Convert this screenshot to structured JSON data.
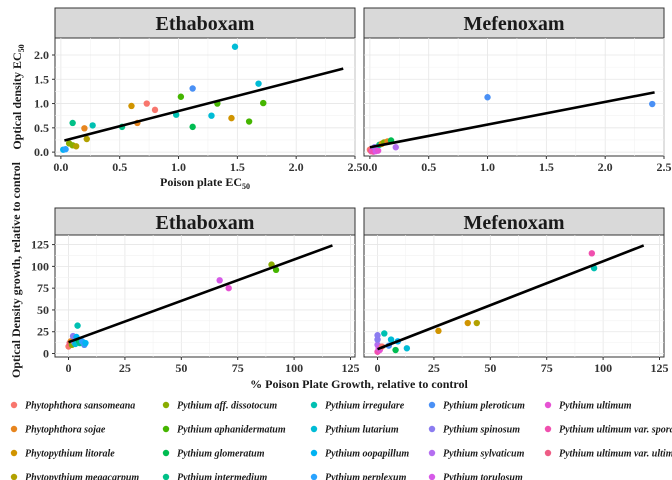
{
  "chart_data": [
    {
      "type": "scatter",
      "panel": "Ethaboxam",
      "strip_label": "Ethaboxam",
      "ylabel": "Optical density EC",
      "ylabel_sub": "50",
      "xlabel": "Poison plate EC",
      "xlabel_sub": "50",
      "xlim": [
        -0.05,
        2.5
      ],
      "ylim": [
        -0.08,
        2.35
      ],
      "x_ticks": [
        0.0,
        0.5,
        1.0,
        1.5,
        2.0,
        2.5
      ],
      "x_tick_labels": [
        "0.0",
        "0.5",
        "1.0",
        "1.5",
        "2.0",
        "2.5"
      ],
      "y_ticks": [
        0.0,
        0.5,
        1.0,
        1.5,
        2.0
      ],
      "y_tick_labels": [
        "0.0",
        "0.5",
        "1.0",
        "1.5",
        "2.0"
      ],
      "fit_line": {
        "x": [
          0.03,
          2.4
        ],
        "y": [
          0.24,
          1.72
        ]
      },
      "points": [
        {
          "x": 0.02,
          "y": 0.05,
          "species": "Pythium oopapillum"
        },
        {
          "x": 0.04,
          "y": 0.06,
          "species": "Pythium perplexum"
        },
        {
          "x": 0.07,
          "y": 0.18,
          "species": "Pythium aff. dissotocum"
        },
        {
          "x": 0.1,
          "y": 0.6,
          "species": "Pythium intermedium"
        },
        {
          "x": 0.1,
          "y": 0.14,
          "species": "Pythium aff. dissotocum"
        },
        {
          "x": 0.13,
          "y": 0.12,
          "species": "Phytopythium megacarpum"
        },
        {
          "x": 0.2,
          "y": 0.49,
          "species": "Phytophthora sojae"
        },
        {
          "x": 0.22,
          "y": 0.27,
          "species": "Phytopythium megacarpum"
        },
        {
          "x": 0.27,
          "y": 0.55,
          "species": "Pythium irregulare"
        },
        {
          "x": 0.52,
          "y": 0.52,
          "species": "Pythium intermedium"
        },
        {
          "x": 0.6,
          "y": 0.95,
          "species": "Phytopythium litorale"
        },
        {
          "x": 0.65,
          "y": 0.6,
          "species": "Phytophthora sojae"
        },
        {
          "x": 0.73,
          "y": 1.0,
          "species": "Phytophthora sansomeana"
        },
        {
          "x": 0.8,
          "y": 0.87,
          "species": "Phytophthora sansomeana"
        },
        {
          "x": 0.98,
          "y": 0.77,
          "species": "Pythium irregulare"
        },
        {
          "x": 1.02,
          "y": 1.14,
          "species": "Pythium aphanidermatum"
        },
        {
          "x": 1.12,
          "y": 1.31,
          "species": "Pythium pleroticum"
        },
        {
          "x": 1.12,
          "y": 0.52,
          "species": "Pythium glomeratum"
        },
        {
          "x": 1.28,
          "y": 0.75,
          "species": "Pythium lutarium"
        },
        {
          "x": 1.33,
          "y": 1.0,
          "species": "Pythium aphanidermatum"
        },
        {
          "x": 1.45,
          "y": 0.7,
          "species": "Phytopythium litorale"
        },
        {
          "x": 1.48,
          "y": 2.17,
          "species": "Pythium lutarium"
        },
        {
          "x": 1.6,
          "y": 0.63,
          "species": "Pythium aphanidermatum"
        },
        {
          "x": 1.68,
          "y": 1.41,
          "species": "Pythium lutarium"
        },
        {
          "x": 1.72,
          "y": 1.01,
          "species": "Pythium aphanidermatum"
        }
      ]
    },
    {
      "type": "scatter",
      "panel": "Mefenoxam",
      "strip_label": "Mefenoxam",
      "xlim": [
        -0.05,
        2.5
      ],
      "ylim": [
        -0.08,
        2.35
      ],
      "x_ticks": [
        0.0,
        0.5,
        1.0,
        1.5,
        2.0,
        2.5
      ],
      "x_tick_labels": [
        "0.0",
        "0.5",
        "1.0",
        "1.5",
        "2.0",
        "2.5"
      ],
      "fit_line": {
        "x": [
          0.0,
          2.42
        ],
        "y": [
          0.1,
          1.23
        ]
      },
      "points": [
        {
          "x": 0.0,
          "y": 0.05,
          "species": "Phytophthora sansomeana"
        },
        {
          "x": 0.01,
          "y": 0.02,
          "species": "Pythium ultimum var. ultimum"
        },
        {
          "x": 0.02,
          "y": 0.03,
          "species": "Pythium ultimum"
        },
        {
          "x": 0.03,
          "y": 0.01,
          "species": "Pythium ultimum var. sporangiiferum"
        },
        {
          "x": 0.04,
          "y": 0.1,
          "species": "Pythium spinosum"
        },
        {
          "x": 0.05,
          "y": 0.02,
          "species": "Pythium torulosum"
        },
        {
          "x": 0.07,
          "y": 0.03,
          "species": "Pythium ultimum"
        },
        {
          "x": 0.08,
          "y": 0.15,
          "species": "Pythium intermedium"
        },
        {
          "x": 0.1,
          "y": 0.17,
          "species": "Phytopythium litorale"
        },
        {
          "x": 0.12,
          "y": 0.2,
          "species": "Pythium aff. dissotocum"
        },
        {
          "x": 0.15,
          "y": 0.22,
          "species": "Phytophthora sojae"
        },
        {
          "x": 0.18,
          "y": 0.24,
          "species": "Pythium glomeratum"
        },
        {
          "x": 0.22,
          "y": 0.1,
          "species": "Pythium sylvaticum"
        },
        {
          "x": 1.0,
          "y": 1.13,
          "species": "Pythium pleroticum"
        },
        {
          "x": 2.4,
          "y": 0.99,
          "species": "Pythium pleroticum"
        }
      ]
    },
    {
      "type": "scatter",
      "panel": "Ethaboxam",
      "strip_label": "Ethaboxam",
      "ylabel": "Optical Density growth, relative to control",
      "xlabel": "% Poison Plate Growth, relative to control",
      "xlim": [
        -6,
        127
      ],
      "ylim": [
        -4,
        136
      ],
      "x_ticks": [
        0,
        25,
        50,
        75,
        100,
        125
      ],
      "x_tick_labels": [
        "0",
        "25",
        "50",
        "75",
        "100",
        "125"
      ],
      "y_ticks": [
        0,
        25,
        50,
        75,
        100,
        125
      ],
      "y_tick_labels": [
        "0",
        "25",
        "50",
        "75",
        "100",
        "125"
      ],
      "fit_line": {
        "x": [
          0,
          117
        ],
        "y": [
          13,
          124
        ]
      },
      "points": [
        {
          "x": 0.0,
          "y": 8,
          "species": "Phytophthora sansomeana"
        },
        {
          "x": 0.5,
          "y": 12,
          "species": "Pythium ultimum var. ultimum"
        },
        {
          "x": 1.0,
          "y": 14,
          "species": "Phytophthora sojae"
        },
        {
          "x": 1.5,
          "y": 10,
          "species": "Pythium aff. dissotocum"
        },
        {
          "x": 2.0,
          "y": 20,
          "species": "Pythium spinosum"
        },
        {
          "x": 2.5,
          "y": 13,
          "species": "Pythium sylvaticum"
        },
        {
          "x": 3.0,
          "y": 11,
          "species": "Pythium lutarium"
        },
        {
          "x": 3.5,
          "y": 19,
          "species": "Pythium oopapillum"
        },
        {
          "x": 4.0,
          "y": 32,
          "species": "Pythium irregulare"
        },
        {
          "x": 4.5,
          "y": 15,
          "species": "Pythium glomeratum"
        },
        {
          "x": 5.0,
          "y": 12,
          "species": "Pythium intermedium"
        },
        {
          "x": 6.0,
          "y": 14,
          "species": "Pythium perplexum"
        },
        {
          "x": 7.0,
          "y": 10,
          "species": "Pythium pleroticum"
        },
        {
          "x": 7.5,
          "y": 12,
          "species": "Pythium oopapillum"
        },
        {
          "x": 67,
          "y": 84,
          "species": "Pythium torulosum"
        },
        {
          "x": 71,
          "y": 75,
          "species": "Pythium ultimum"
        },
        {
          "x": 90,
          "y": 102,
          "species": "Pythium aff. dissotocum"
        },
        {
          "x": 92,
          "y": 96,
          "species": "Pythium aphanidermatum"
        }
      ]
    },
    {
      "type": "scatter",
      "panel": "Mefenoxam",
      "strip_label": "Mefenoxam",
      "xlim": [
        -6,
        127
      ],
      "ylim": [
        -4,
        136
      ],
      "x_ticks": [
        0,
        25,
        50,
        75,
        100,
        125
      ],
      "x_tick_labels": [
        "0",
        "25",
        "50",
        "75",
        "100",
        "125"
      ],
      "fit_line": {
        "x": [
          0,
          118
        ],
        "y": [
          5,
          124
        ]
      },
      "points": [
        {
          "x": 0.0,
          "y": 2,
          "species": "Pythium ultimum var. sporangiiferum"
        },
        {
          "x": 0.0,
          "y": 10,
          "species": "Pythium sylvaticum"
        },
        {
          "x": 0.0,
          "y": 16,
          "species": "Pythium spinosum"
        },
        {
          "x": 0.0,
          "y": 21,
          "species": "Pythium spinosum"
        },
        {
          "x": 0.5,
          "y": 6,
          "species": "Pythium torulosum"
        },
        {
          "x": 1.0,
          "y": 4,
          "species": "Pythium ultimum"
        },
        {
          "x": 2.0,
          "y": 8,
          "species": "Phytophthora sansomeana"
        },
        {
          "x": 3.0,
          "y": 23,
          "species": "Pythium irregulare"
        },
        {
          "x": 5.0,
          "y": 9,
          "species": "Pythium pleroticum"
        },
        {
          "x": 6.0,
          "y": 16,
          "species": "Pythium lutarium"
        },
        {
          "x": 8.0,
          "y": 4,
          "species": "Pythium glomeratum"
        },
        {
          "x": 9.0,
          "y": 14,
          "species": "Pythium oopapillum"
        },
        {
          "x": 13.0,
          "y": 6,
          "species": "Pythium lutarium"
        },
        {
          "x": 27,
          "y": 26,
          "species": "Phytopythium litorale"
        },
        {
          "x": 40,
          "y": 35,
          "species": "Phytopythium litorale"
        },
        {
          "x": 44,
          "y": 35,
          "species": "Phytopythium megacarpum"
        },
        {
          "x": 95,
          "y": 115,
          "species": "Pythium ultimum var. sporangiiferum"
        },
        {
          "x": 96,
          "y": 98,
          "species": "Pythium irregulare"
        }
      ]
    }
  ],
  "legend": {
    "placement": "bottom",
    "items": [
      {
        "label": "Phytophthora sansomeana",
        "color": "#F8766D"
      },
      {
        "label": "Phytophthora sojae",
        "color": "#E7851E"
      },
      {
        "label": "Phytopythium litorale",
        "color": "#D09400"
      },
      {
        "label": "Phytopythium megacarpum",
        "color": "#B2A100"
      },
      {
        "label": "Pythium aff. dissotocum",
        "color": "#89AC00"
      },
      {
        "label": "Pythium aphanidermatum",
        "color": "#45B500"
      },
      {
        "label": "Pythium glomeratum",
        "color": "#00BC51"
      },
      {
        "label": "Pythium intermedium",
        "color": "#00C087"
      },
      {
        "label": "Pythium irregulare",
        "color": "#00C0B2"
      },
      {
        "label": "Pythium lutarium",
        "color": "#00BCD6"
      },
      {
        "label": "Pythium oopapillum",
        "color": "#00B3F2"
      },
      {
        "label": "Pythium perplexum",
        "color": "#29A3FF"
      },
      {
        "label": "Pythium pleroticum",
        "color": "#4A90F5"
      },
      {
        "label": "Pythium spinosum",
        "color": "#8B7CF0"
      },
      {
        "label": "Pythium sylvaticum",
        "color": "#B46EF0"
      },
      {
        "label": "Pythium torulosum",
        "color": "#D65AE8"
      },
      {
        "label": "Pythium ultimum",
        "color": "#E652D3"
      },
      {
        "label": "Pythium ultimum var. sporangiiferum",
        "color": "#F04FAE"
      },
      {
        "label": "Pythium ultimum var. ultimum",
        "color": "#EE5C85"
      }
    ]
  }
}
